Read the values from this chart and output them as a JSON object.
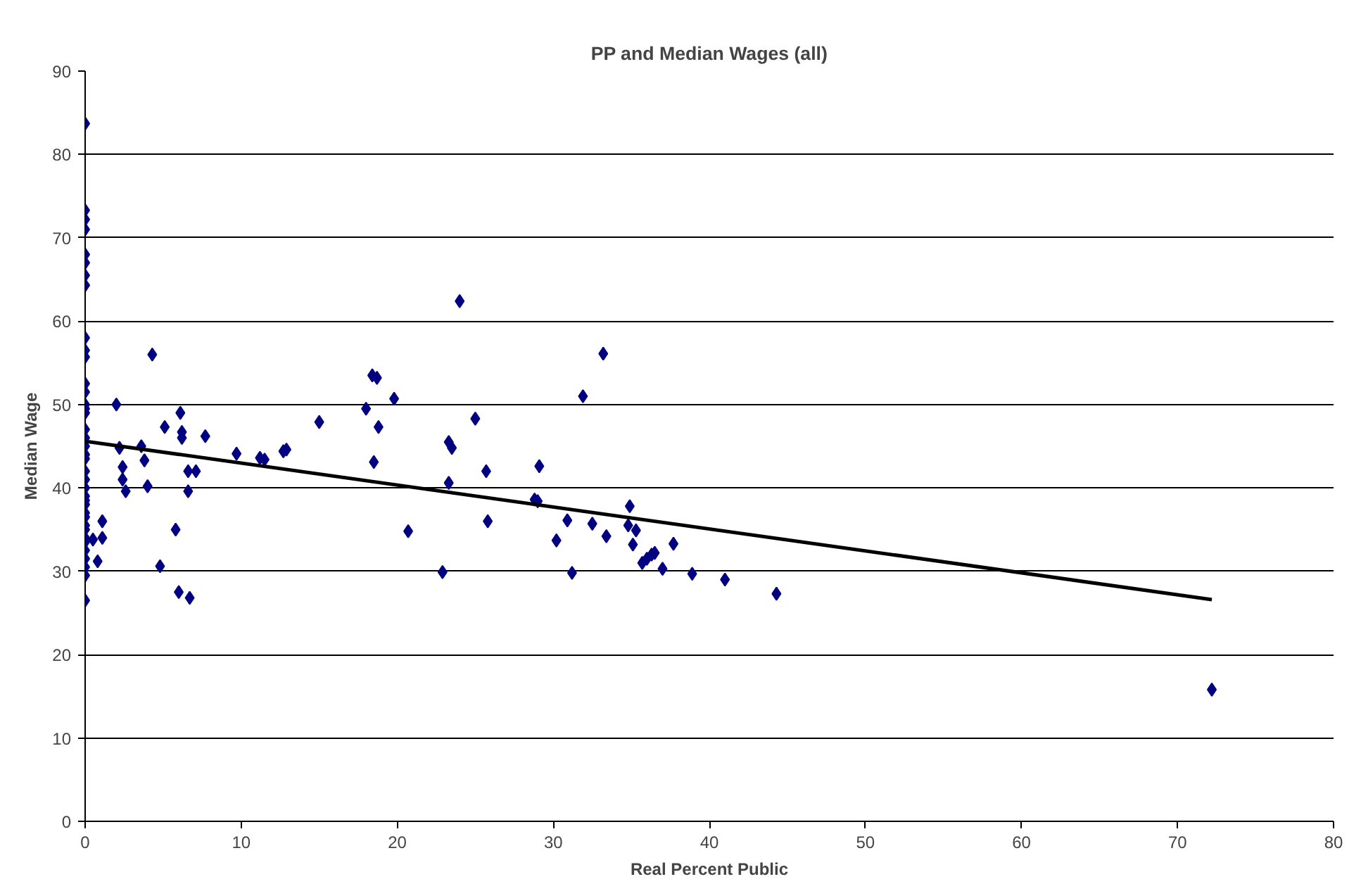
{
  "chart_data": {
    "type": "scatter",
    "title": "PP and Median Wages (all)",
    "xlabel": "Real Percent Public",
    "ylabel": "Median Wage",
    "xlim": [
      0,
      80
    ],
    "xticks": [
      0,
      10,
      20,
      30,
      40,
      50,
      60,
      70,
      80
    ],
    "ylim": [
      0,
      90
    ],
    "yticks": [
      0,
      10,
      20,
      30,
      40,
      50,
      60,
      70,
      80,
      90
    ],
    "grid": "y",
    "series": [
      {
        "color": "#000080",
        "marker": "diamond",
        "x": [
          0,
          0,
          0,
          0,
          0,
          0,
          0,
          0,
          0,
          0,
          0,
          0,
          0,
          0,
          0,
          0,
          0,
          0,
          0,
          0,
          0,
          0,
          0,
          0,
          0,
          0,
          0,
          0,
          0,
          0,
          0,
          0,
          0,
          0,
          0,
          0,
          0,
          0,
          0.5,
          0.8,
          1.1,
          1.1,
          2,
          2.2,
          2.4,
          2.4,
          2.6,
          3.6,
          3.8,
          4,
          4.3,
          4.8,
          5.1,
          5.8,
          6,
          6.1,
          6.2,
          6.2,
          6.6,
          6.6,
          6.7,
          7.1,
          7.7,
          9.7,
          11.2,
          11.5,
          12.7,
          12.9,
          15,
          18,
          18.4,
          18.7,
          18.5,
          18.8,
          19.8,
          20.7,
          22.9,
          23.3,
          23.5,
          23.3,
          24,
          25,
          25.7,
          25.8,
          28.8,
          29.1,
          29,
          30.2,
          30.9,
          31.2,
          31.9,
          32.5,
          33.2,
          33.4,
          34.9,
          34.8,
          35.1,
          35.3,
          35.7,
          36,
          36.3,
          36.5,
          37,
          37.7,
          38.9,
          41,
          44.3,
          72.2
        ],
        "values": [
          83.7,
          73.3,
          72.2,
          71,
          68,
          67,
          65.5,
          64.3,
          58,
          56.5,
          55.7,
          52.5,
          51.5,
          50,
          49.5,
          49,
          47,
          46,
          45,
          44,
          43.5,
          42,
          41,
          40,
          39,
          38.5,
          38,
          37,
          36.5,
          35.5,
          35,
          34,
          33.5,
          32.5,
          31.5,
          30.5,
          29.5,
          26.5,
          33.8,
          31.2,
          36,
          34,
          50,
          44.8,
          42.5,
          41,
          39.6,
          45,
          43.3,
          40.2,
          56,
          30.6,
          47.3,
          35,
          27.5,
          49,
          46.7,
          46,
          42,
          39.6,
          26.8,
          42,
          46.2,
          44.1,
          43.6,
          43.4,
          44.4,
          44.6,
          47.9,
          49.5,
          53.5,
          53.2,
          43.1,
          47.3,
          50.7,
          34.8,
          29.9,
          45.5,
          44.8,
          40.6,
          62.4,
          48.3,
          42,
          36,
          38.6,
          42.6,
          38.4,
          33.7,
          36.1,
          29.8,
          51,
          35.7,
          56.1,
          34.2,
          37.8,
          35.5,
          33.2,
          34.9,
          31,
          31.5,
          32,
          32.2,
          30.3,
          33.3,
          29.7,
          29,
          27.3,
          15.8
        ]
      },
      {
        "type": "line",
        "marker": "none",
        "color": "#000000",
        "x": [
          0,
          72.2
        ],
        "values": [
          45.6,
          26.6
        ]
      }
    ]
  }
}
